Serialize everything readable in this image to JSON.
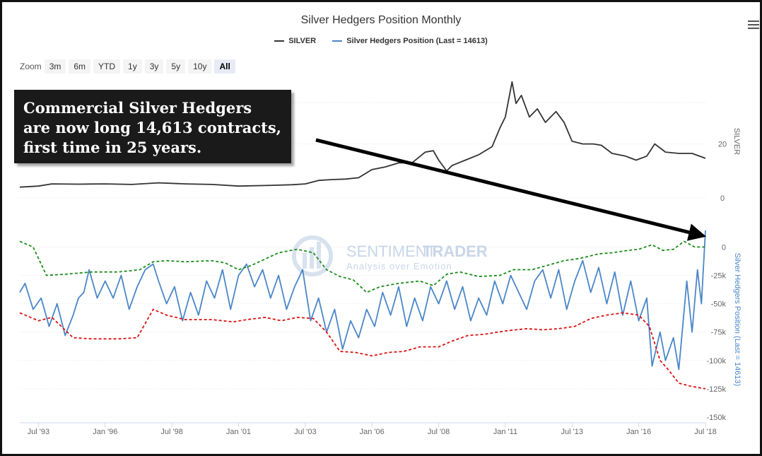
{
  "chart": {
    "title": "Silver Hedgers Position Monthly",
    "legend": [
      {
        "label": "SILVER",
        "color": "#333333"
      },
      {
        "label": "Silver Hedgers Position (Last = 14613)",
        "color": "#4a86c8"
      }
    ],
    "zoom": {
      "label": "Zoom",
      "buttons": [
        "3m",
        "6m",
        "YTD",
        "1y",
        "3y",
        "5y",
        "10y",
        "All"
      ],
      "active": "All"
    },
    "annotation": {
      "lines": [
        "Commercial Silver Hedgers",
        "are now long 14,613 contracts,",
        "first time in 25 years."
      ]
    },
    "watermark": {
      "brand_part1": "SENTIMENT",
      "brand_part2": "TRADER",
      "tagline": "Analysis over Emotion"
    }
  },
  "chart_data": {
    "type": "line",
    "x_range": [
      1992.8,
      2018.5
    ],
    "x_ticks": [
      {
        "label": "Jul '93",
        "x": 1993.5
      },
      {
        "label": "Jan '96",
        "x": 1996.0
      },
      {
        "label": "Jul '98",
        "x": 1998.5
      },
      {
        "label": "Jan '01",
        "x": 2001.0
      },
      {
        "label": "Jul '03",
        "x": 2003.5
      },
      {
        "label": "Jan '06",
        "x": 2006.0
      },
      {
        "label": "Jul '08",
        "x": 2008.5
      },
      {
        "label": "Jan '11",
        "x": 2011.0
      },
      {
        "label": "Jul '13",
        "x": 2013.5
      },
      {
        "label": "Jan '16",
        "x": 2016.0
      },
      {
        "label": "Jul '18",
        "x": 2018.5
      }
    ],
    "silver_axis": {
      "label": "SILVER",
      "ylim": [
        0,
        44
      ],
      "ticks": [
        0,
        20
      ]
    },
    "hedgers_axis": {
      "label": "Silver Hedgers Position (Last = 14613)",
      "ylim": [
        -150000,
        14613
      ],
      "ticks": [
        {
          "label": "0",
          "v": 0
        },
        {
          "label": "-25k",
          "v": -25000
        },
        {
          "label": "-50k",
          "v": -50000
        },
        {
          "label": "-75k",
          "v": -75000
        },
        {
          "label": "-100k",
          "v": -100000
        },
        {
          "label": "-125k",
          "v": -125000
        },
        {
          "label": "-150k",
          "v": -150000
        }
      ]
    },
    "series": [
      {
        "name": "SILVER",
        "axis": "silver",
        "color": "#333333",
        "points": [
          [
            1992.8,
            4.0
          ],
          [
            1993.5,
            4.4
          ],
          [
            1994.0,
            5.2
          ],
          [
            1995.0,
            5.1
          ],
          [
            1996.0,
            5.2
          ],
          [
            1997.0,
            5.0
          ],
          [
            1998.0,
            5.6
          ],
          [
            1999.0,
            5.2
          ],
          [
            2000.0,
            5.0
          ],
          [
            2001.0,
            4.4
          ],
          [
            2002.0,
            4.6
          ],
          [
            2003.0,
            4.9
          ],
          [
            2003.5,
            5.2
          ],
          [
            2004.0,
            6.5
          ],
          [
            2004.5,
            6.8
          ],
          [
            2005.0,
            7.0
          ],
          [
            2005.5,
            7.5
          ],
          [
            2006.0,
            10.5
          ],
          [
            2006.5,
            11.5
          ],
          [
            2007.0,
            13.0
          ],
          [
            2007.5,
            13.0
          ],
          [
            2008.0,
            17.0
          ],
          [
            2008.3,
            17.5
          ],
          [
            2008.5,
            14.0
          ],
          [
            2008.8,
            10.0
          ],
          [
            2009.0,
            12.0
          ],
          [
            2009.5,
            14.0
          ],
          [
            2010.0,
            16.0
          ],
          [
            2010.5,
            19.0
          ],
          [
            2010.8,
            26.0
          ],
          [
            2011.0,
            30.0
          ],
          [
            2011.25,
            43.0
          ],
          [
            2011.4,
            35.0
          ],
          [
            2011.6,
            38.0
          ],
          [
            2011.9,
            30.0
          ],
          [
            2012.2,
            33.0
          ],
          [
            2012.5,
            28.0
          ],
          [
            2012.9,
            32.0
          ],
          [
            2013.2,
            28.0
          ],
          [
            2013.5,
            21.0
          ],
          [
            2013.9,
            20.0
          ],
          [
            2014.3,
            20.0
          ],
          [
            2014.6,
            19.5
          ],
          [
            2015.0,
            16.5
          ],
          [
            2015.5,
            15.5
          ],
          [
            2015.9,
            14.0
          ],
          [
            2016.3,
            15.5
          ],
          [
            2016.6,
            20.0
          ],
          [
            2017.0,
            17.0
          ],
          [
            2017.5,
            16.5
          ],
          [
            2018.0,
            16.5
          ],
          [
            2018.5,
            14.7
          ]
        ]
      },
      {
        "name": "Silver Hedgers Position (Last = 14613)",
        "axis": "hedgers",
        "color": "#4a86c8",
        "points": [
          [
            1992.8,
            -40000
          ],
          [
            1993.0,
            -32000
          ],
          [
            1993.3,
            -55000
          ],
          [
            1993.6,
            -45000
          ],
          [
            1993.9,
            -70000
          ],
          [
            1994.2,
            -50000
          ],
          [
            1994.5,
            -78000
          ],
          [
            1994.8,
            -60000
          ],
          [
            1995.0,
            -45000
          ],
          [
            1995.2,
            -40000
          ],
          [
            1995.4,
            -20000
          ],
          [
            1995.7,
            -45000
          ],
          [
            1996.0,
            -30000
          ],
          [
            1996.3,
            -45000
          ],
          [
            1996.6,
            -25000
          ],
          [
            1996.9,
            -55000
          ],
          [
            1997.2,
            -35000
          ],
          [
            1997.5,
            -20000
          ],
          [
            1997.8,
            -15000
          ],
          [
            1998.0,
            -30000
          ],
          [
            1998.3,
            -50000
          ],
          [
            1998.6,
            -35000
          ],
          [
            1998.9,
            -65000
          ],
          [
            1999.2,
            -40000
          ],
          [
            1999.5,
            -60000
          ],
          [
            1999.8,
            -30000
          ],
          [
            2000.1,
            -45000
          ],
          [
            2000.4,
            -20000
          ],
          [
            2000.7,
            -55000
          ],
          [
            2001.0,
            -25000
          ],
          [
            2001.3,
            -15000
          ],
          [
            2001.6,
            -35000
          ],
          [
            2001.9,
            -20000
          ],
          [
            2002.2,
            -45000
          ],
          [
            2002.5,
            -25000
          ],
          [
            2002.8,
            -55000
          ],
          [
            2003.1,
            -35000
          ],
          [
            2003.4,
            -20000
          ],
          [
            2003.7,
            -65000
          ],
          [
            2004.0,
            -45000
          ],
          [
            2004.3,
            -75000
          ],
          [
            2004.6,
            -55000
          ],
          [
            2004.9,
            -90000
          ],
          [
            2005.2,
            -65000
          ],
          [
            2005.5,
            -80000
          ],
          [
            2005.8,
            -55000
          ],
          [
            2006.1,
            -70000
          ],
          [
            2006.4,
            -40000
          ],
          [
            2006.7,
            -60000
          ],
          [
            2007.0,
            -35000
          ],
          [
            2007.3,
            -70000
          ],
          [
            2007.6,
            -45000
          ],
          [
            2007.9,
            -65000
          ],
          [
            2008.2,
            -35000
          ],
          [
            2008.5,
            -50000
          ],
          [
            2008.8,
            -30000
          ],
          [
            2009.1,
            -55000
          ],
          [
            2009.4,
            -35000
          ],
          [
            2009.7,
            -65000
          ],
          [
            2010.0,
            -45000
          ],
          [
            2010.3,
            -60000
          ],
          [
            2010.6,
            -30000
          ],
          [
            2010.9,
            -50000
          ],
          [
            2011.2,
            -25000
          ],
          [
            2011.5,
            -40000
          ],
          [
            2011.8,
            -55000
          ],
          [
            2012.1,
            -30000
          ],
          [
            2012.4,
            -20000
          ],
          [
            2012.7,
            -45000
          ],
          [
            2013.0,
            -20000
          ],
          [
            2013.3,
            -55000
          ],
          [
            2013.6,
            -30000
          ],
          [
            2013.9,
            -12000
          ],
          [
            2014.2,
            -40000
          ],
          [
            2014.5,
            -18000
          ],
          [
            2014.8,
            -50000
          ],
          [
            2015.1,
            -22000
          ],
          [
            2015.4,
            -60000
          ],
          [
            2015.7,
            -30000
          ],
          [
            2016.0,
            -65000
          ],
          [
            2016.3,
            -45000
          ],
          [
            2016.5,
            -105000
          ],
          [
            2016.8,
            -75000
          ],
          [
            2017.0,
            -100000
          ],
          [
            2017.3,
            -80000
          ],
          [
            2017.5,
            -108000
          ],
          [
            2017.8,
            -30000
          ],
          [
            2018.0,
            -75000
          ],
          [
            2018.2,
            -20000
          ],
          [
            2018.35,
            -50000
          ],
          [
            2018.5,
            14613
          ]
        ]
      },
      {
        "name": "",
        "axis": "hedgers",
        "color": "#1a8c1a",
        "style": "dashed",
        "points": [
          [
            1992.8,
            5000
          ],
          [
            1993.3,
            0
          ],
          [
            1993.8,
            -25000
          ],
          [
            1994.5,
            -24000
          ],
          [
            1995.5,
            -22000
          ],
          [
            1996.5,
            -22000
          ],
          [
            1997.3,
            -20000
          ],
          [
            1997.8,
            -13000
          ],
          [
            1998.3,
            -12000
          ],
          [
            1999.0,
            -13000
          ],
          [
            2000.0,
            -12000
          ],
          [
            2000.5,
            -14000
          ],
          [
            2001.0,
            -20000
          ],
          [
            2001.5,
            -16000
          ],
          [
            2002.5,
            -5000
          ],
          [
            2003.2,
            -2000
          ],
          [
            2003.8,
            -5000
          ],
          [
            2004.3,
            -20000
          ],
          [
            2004.8,
            -26000
          ],
          [
            2005.3,
            -29000
          ],
          [
            2005.8,
            -40000
          ],
          [
            2006.3,
            -35000
          ],
          [
            2007.0,
            -32000
          ],
          [
            2007.8,
            -30000
          ],
          [
            2008.3,
            -34000
          ],
          [
            2008.8,
            -24000
          ],
          [
            2009.3,
            -22000
          ],
          [
            2010.0,
            -26000
          ],
          [
            2010.8,
            -25000
          ],
          [
            2011.3,
            -20000
          ],
          [
            2012.0,
            -20000
          ],
          [
            2012.6,
            -16000
          ],
          [
            2013.2,
            -12000
          ],
          [
            2013.8,
            -10000
          ],
          [
            2014.5,
            -6000
          ],
          [
            2015.0,
            -5000
          ],
          [
            2015.6,
            -3000
          ],
          [
            2016.0,
            -2000
          ],
          [
            2016.5,
            2000
          ],
          [
            2016.9,
            -3000
          ],
          [
            2017.3,
            -2000
          ],
          [
            2017.7,
            5000
          ],
          [
            2018.1,
            0
          ],
          [
            2018.5,
            0
          ]
        ]
      },
      {
        "name": "",
        "axis": "hedgers",
        "color": "#dd1111",
        "style": "dashed",
        "points": [
          [
            1992.8,
            -58000
          ],
          [
            1993.5,
            -65000
          ],
          [
            1994.0,
            -62000
          ],
          [
            1994.8,
            -80000
          ],
          [
            1995.5,
            -81000
          ],
          [
            1996.5,
            -81000
          ],
          [
            1997.2,
            -80000
          ],
          [
            1997.8,
            -55000
          ],
          [
            1998.3,
            -60000
          ],
          [
            1999.0,
            -64000
          ],
          [
            2000.0,
            -64000
          ],
          [
            2000.8,
            -66000
          ],
          [
            2001.3,
            -64000
          ],
          [
            2002.0,
            -62000
          ],
          [
            2002.6,
            -65000
          ],
          [
            2003.2,
            -62000
          ],
          [
            2003.8,
            -63000
          ],
          [
            2004.3,
            -75000
          ],
          [
            2004.8,
            -92000
          ],
          [
            2005.4,
            -93000
          ],
          [
            2006.0,
            -96000
          ],
          [
            2006.6,
            -93000
          ],
          [
            2007.2,
            -92000
          ],
          [
            2007.8,
            -88000
          ],
          [
            2008.5,
            -88000
          ],
          [
            2009.0,
            -83000
          ],
          [
            2009.6,
            -78000
          ],
          [
            2010.2,
            -77000
          ],
          [
            2011.0,
            -74000
          ],
          [
            2011.8,
            -72000
          ],
          [
            2012.4,
            -73000
          ],
          [
            2013.0,
            -72000
          ],
          [
            2013.6,
            -70000
          ],
          [
            2014.2,
            -63000
          ],
          [
            2014.8,
            -60000
          ],
          [
            2015.4,
            -58000
          ],
          [
            2016.0,
            -60000
          ],
          [
            2016.4,
            -70000
          ],
          [
            2016.8,
            -100000
          ],
          [
            2017.1,
            -108000
          ],
          [
            2017.5,
            -120000
          ],
          [
            2018.0,
            -123000
          ],
          [
            2018.5,
            -125000
          ]
        ]
      }
    ],
    "arrow": {
      "from": [
        2003.9,
        21.5
      ],
      "from_axis": "silver",
      "to": [
        2018.4,
        10000
      ],
      "to_axis": "hedgers"
    }
  }
}
